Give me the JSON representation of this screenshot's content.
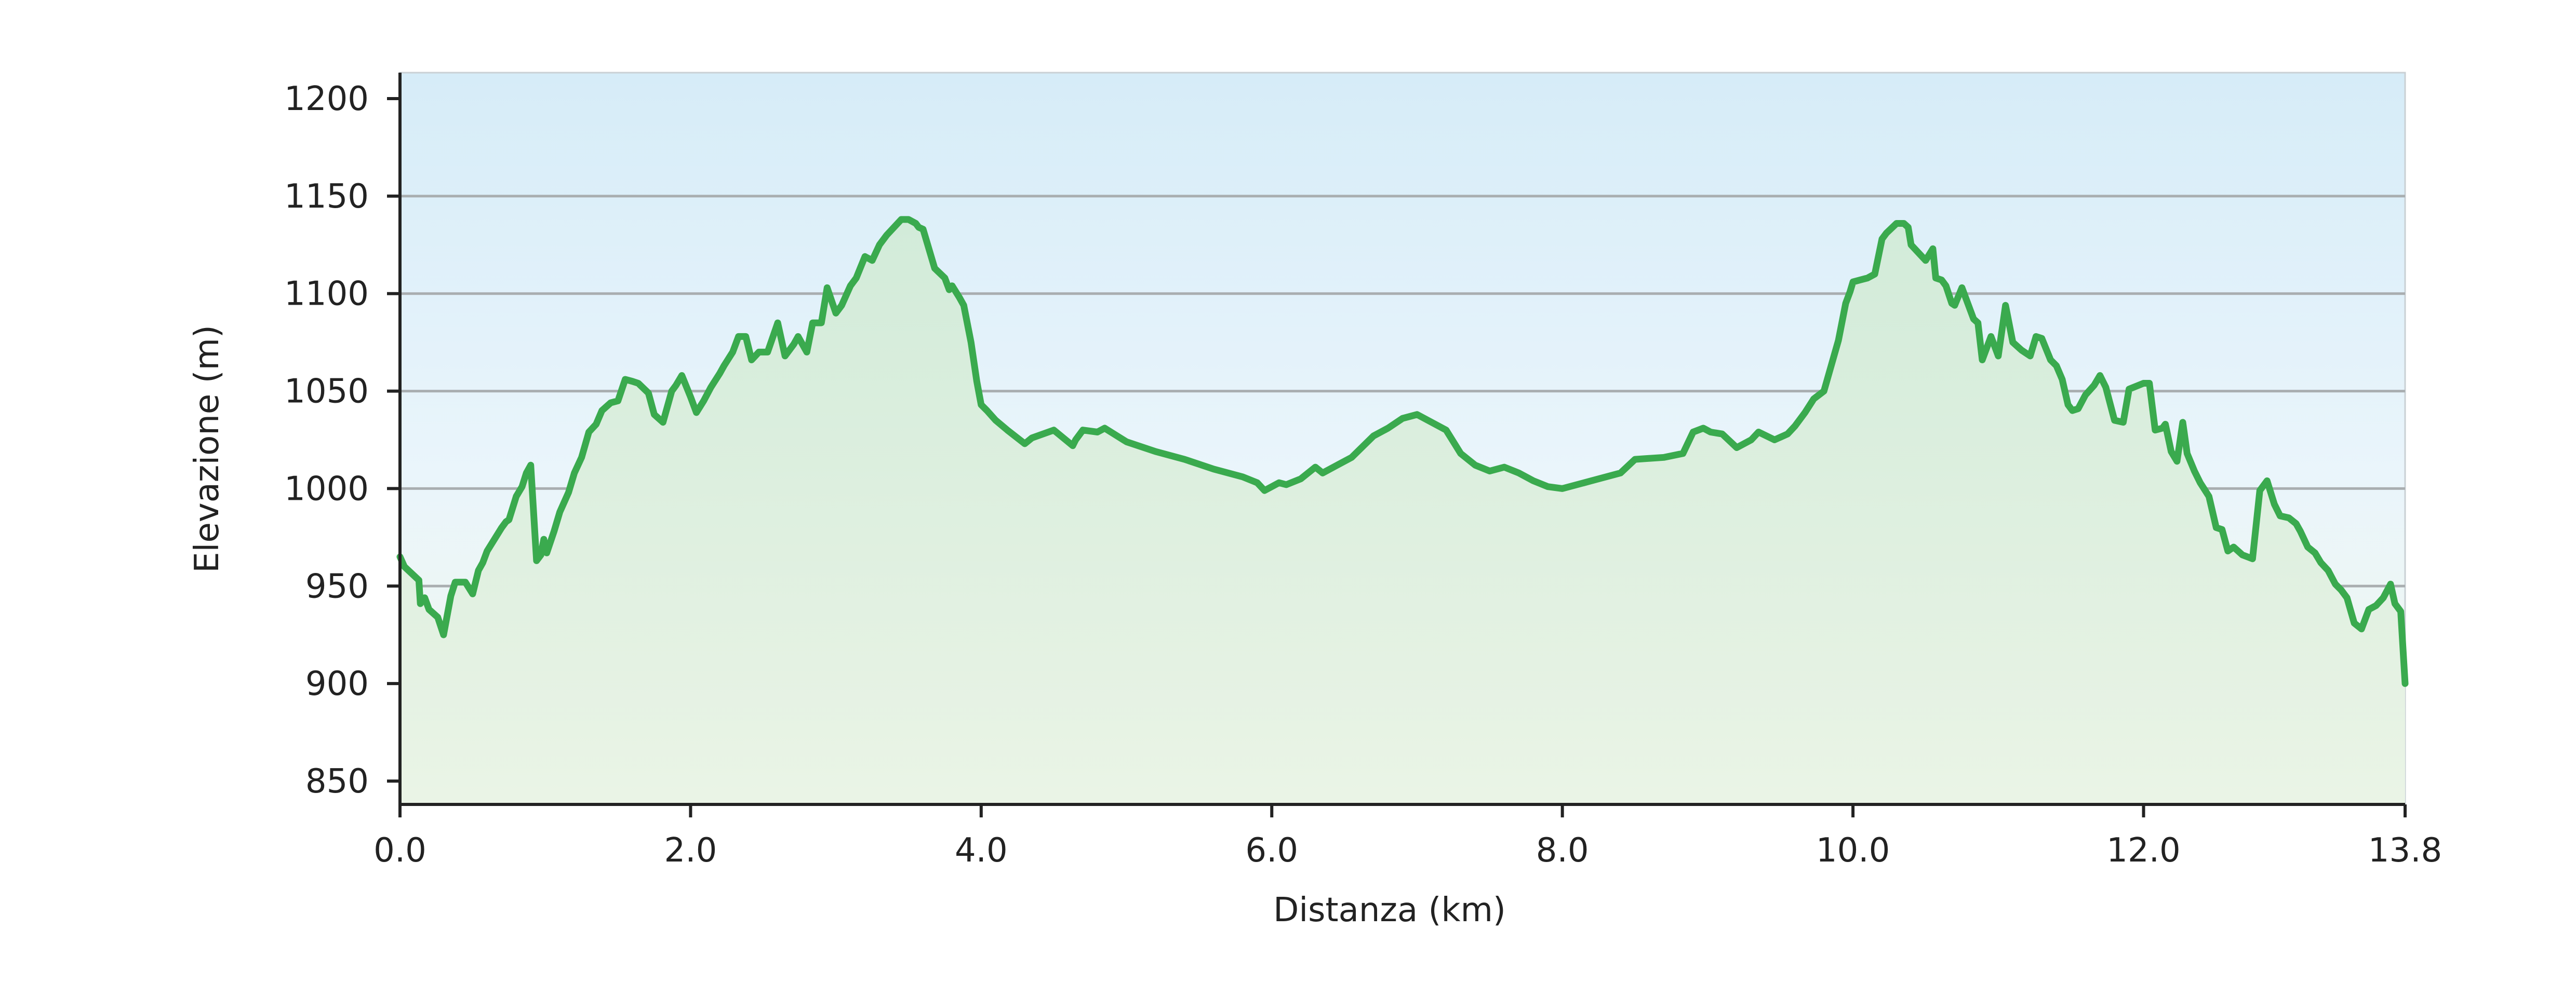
{
  "chart_data": {
    "type": "area",
    "title": "",
    "xlabel": "Distanza (km)",
    "ylabel": "Elevazione (m)",
    "xlim": [
      0,
      13.8
    ],
    "ylim": [
      850,
      1200
    ],
    "x_ticks": [
      0,
      2,
      4,
      6,
      8,
      10,
      12,
      13.8
    ],
    "x_tick_labels": [
      "0.0",
      "2.0",
      "4.0",
      "6.0",
      "8.0",
      "10.0",
      "12.0",
      "13.8"
    ],
    "y_ticks": [
      850,
      900,
      950,
      1000,
      1050,
      1100,
      1150,
      1200
    ],
    "y_tick_labels": [
      "850",
      "900",
      "950",
      "1000",
      "1050",
      "1100",
      "1150",
      "1200"
    ],
    "grid": true,
    "colors": {
      "line": "#3aaa4e",
      "fill": "#d4ecd9",
      "sky_top": "#d6ecf8",
      "sky_bottom": "#f1f7ec",
      "grid": "#a9aeb0",
      "axis": "#222222"
    },
    "series": [
      {
        "x": [
          0.0,
          0.03,
          0.13,
          0.14,
          0.17,
          0.2,
          0.26,
          0.3,
          0.35,
          0.38,
          0.45,
          0.5,
          0.54,
          0.57,
          0.6,
          0.7,
          0.73,
          0.75,
          0.8,
          0.84,
          0.87,
          0.9,
          0.94,
          0.97,
          0.99,
          1.01,
          1.06,
          1.1,
          1.13,
          1.16,
          1.2,
          1.25,
          1.3,
          1.35,
          1.39,
          1.45,
          1.5,
          1.55,
          1.6,
          1.64,
          1.71,
          1.75,
          1.81,
          1.87,
          1.9,
          1.94,
          2.0,
          2.04,
          2.09,
          2.14,
          2.2,
          2.23,
          2.29,
          2.33,
          2.38,
          2.42,
          2.47,
          2.53,
          2.6,
          2.65,
          2.71,
          2.74,
          2.8,
          2.84,
          2.9,
          2.94,
          3.0,
          3.04,
          3.1,
          3.14,
          3.2,
          3.25,
          3.3,
          3.35,
          3.45,
          3.5,
          3.55,
          3.57,
          3.6,
          3.68,
          3.75,
          3.78,
          3.8,
          3.85,
          3.88,
          3.93,
          3.97,
          4.0,
          4.04,
          4.1,
          4.18,
          4.3,
          4.35,
          4.5,
          4.63,
          4.65,
          4.7,
          4.8,
          4.85,
          5.0,
          5.2,
          5.4,
          5.6,
          5.8,
          5.9,
          5.95,
          6.0,
          6.05,
          6.1,
          6.2,
          6.3,
          6.35,
          6.45,
          6.55,
          6.7,
          6.8,
          6.9,
          7.0,
          7.2,
          7.3,
          7.4,
          7.5,
          7.6,
          7.7,
          7.8,
          7.9,
          8.0,
          8.2,
          8.4,
          8.5,
          8.7,
          8.83,
          8.9,
          8.97,
          9.02,
          9.1,
          9.2,
          9.3,
          9.35,
          9.46,
          9.55,
          9.6,
          9.67,
          9.73,
          9.8,
          9.9,
          9.95,
          9.98,
          10.0,
          10.05,
          10.1,
          10.15,
          10.2,
          10.23,
          10.3,
          10.35,
          10.38,
          10.4,
          10.5,
          10.55,
          10.57,
          10.61,
          10.64,
          10.68,
          10.7,
          10.75,
          10.78,
          10.83,
          10.86,
          10.89,
          10.93,
          10.95,
          11.0,
          11.05,
          11.1,
          11.16,
          11.22,
          11.26,
          11.3,
          11.36,
          11.4,
          11.44,
          11.48,
          11.51,
          11.55,
          11.6,
          11.66,
          11.7,
          11.74,
          11.8,
          11.86,
          11.9,
          12.0,
          12.04,
          12.08,
          12.13,
          12.15,
          12.19,
          12.23,
          12.27,
          12.3,
          12.35,
          12.39,
          12.45,
          12.5,
          12.54,
          12.58,
          12.62,
          12.68,
          12.75,
          12.8,
          12.85,
          12.9,
          12.94,
          13.0,
          13.05,
          13.08,
          13.13,
          13.18,
          13.22,
          13.27,
          13.32,
          13.36,
          13.4,
          13.45,
          13.5,
          13.55,
          13.6,
          13.65,
          13.7,
          13.73,
          13.77,
          13.8
        ],
        "y": [
          965,
          960,
          953,
          941,
          944,
          938,
          934,
          925,
          945,
          952,
          952,
          946,
          958,
          962,
          968,
          980,
          983,
          984,
          996,
          1001,
          1008,
          1012,
          963,
          966,
          974,
          967,
          978,
          988,
          993,
          998,
          1008,
          1016,
          1029,
          1033,
          1040,
          1044,
          1045,
          1056,
          1055,
          1054,
          1049,
          1038,
          1034,
          1050,
          1053,
          1058,
          1047,
          1039,
          1045,
          1052,
          1059,
          1063,
          1070,
          1078,
          1078,
          1066,
          1070,
          1070,
          1085,
          1068,
          1074,
          1078,
          1070,
          1085,
          1085,
          1103,
          1090,
          1094,
          1104,
          1108,
          1119,
          1117,
          1125,
          1130,
          1138,
          1138,
          1136,
          1134,
          1133,
          1113,
          1108,
          1102,
          1104,
          1098,
          1094,
          1075,
          1055,
          1043,
          1040,
          1035,
          1030,
          1023,
          1026,
          1030,
          1022,
          1025,
          1030,
          1029,
          1031,
          1024,
          1019,
          1015,
          1010,
          1006,
          1003,
          999,
          1001,
          1003,
          1002,
          1005,
          1011,
          1008,
          1012,
          1016,
          1027,
          1031,
          1036,
          1038,
          1030,
          1018,
          1012,
          1009,
          1011,
          1008,
          1004,
          1001,
          1000,
          1004,
          1008,
          1015,
          1016,
          1018,
          1029,
          1031,
          1029,
          1028,
          1021,
          1025,
          1029,
          1025,
          1028,
          1032,
          1039,
          1046,
          1050,
          1076,
          1095,
          1101,
          1106,
          1107,
          1108,
          1110,
          1128,
          1131,
          1136,
          1136,
          1134,
          1125,
          1117,
          1123,
          1108,
          1107,
          1104,
          1095,
          1094,
          1103,
          1097,
          1087,
          1085,
          1066,
          1074,
          1078,
          1068,
          1094,
          1075,
          1071,
          1068,
          1078,
          1077,
          1066,
          1063,
          1056,
          1043,
          1040,
          1041,
          1048,
          1053,
          1058,
          1052,
          1035,
          1034,
          1051,
          1054,
          1054,
          1030,
          1031,
          1033,
          1019,
          1014,
          1034,
          1018,
          1009,
          1003,
          996,
          980,
          979,
          968,
          970,
          966,
          964,
          999,
          1004,
          992,
          986,
          985,
          982,
          978,
          970,
          967,
          962,
          958,
          951,
          948,
          944,
          931,
          928,
          938,
          940,
          944,
          951,
          941,
          937,
          900
        ]
      }
    ]
  }
}
